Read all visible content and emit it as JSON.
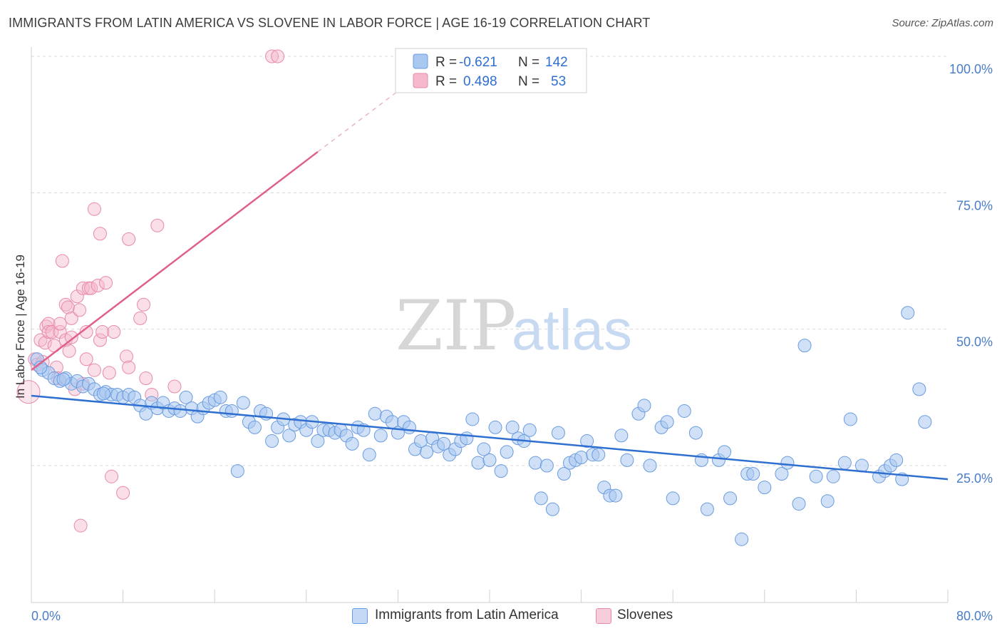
{
  "header": {
    "title": "IMMIGRANTS FROM LATIN AMERICA VS SLOVENE IN LABOR FORCE | AGE 16-19 CORRELATION CHART",
    "source": "Source: ZipAtlas.com"
  },
  "watermark": {
    "zip": "ZIP",
    "atlas": "atlas"
  },
  "legend": {
    "rows": [
      {
        "r_label": "R =",
        "r_value": "-0.621",
        "n_label": "N =",
        "n_value": "142"
      },
      {
        "r_label": "R =",
        "r_value": "0.498",
        "n_label": "N =",
        "n_value": "53"
      }
    ]
  },
  "bottom_legend": {
    "blue": "Immigrants from Latin America",
    "pink": "Slovenes"
  },
  "colors": {
    "blue_fill": "#a9c8f0",
    "blue_stroke": "#6a9be0",
    "blue_line": "#2e6fd0",
    "pink_fill": "#f5b8cc",
    "pink_stroke": "#e88aa8",
    "pink_line": "#e0608a",
    "grid": "#d8d8d8",
    "tick_label": "#4a7cc8"
  },
  "chart_data": {
    "type": "scatter",
    "title": "IMMIGRANTS FROM LATIN AMERICA VS SLOVENE IN LABOR FORCE | AGE 16-19 CORRELATION CHART",
    "xlabel": "",
    "ylabel": "In Labor Force | Age 16-19",
    "xlim": [
      0,
      80
    ],
    "ylim": [
      0,
      105
    ],
    "x_tick_labels": [
      "0.0%",
      "80.0%"
    ],
    "y_ticks": [
      25,
      50,
      75,
      100
    ],
    "y_tick_labels": [
      "25.0%",
      "50.0%",
      "75.0%",
      "100.0%"
    ],
    "grid": true,
    "legend_position": "top-center",
    "series": [
      {
        "name": "Immigrants from Latin America",
        "R": -0.621,
        "N": 142,
        "trend": {
          "x": [
            0,
            80
          ],
          "y": [
            37.8,
            22.5
          ]
        },
        "points": [
          [
            0.5,
            44.5
          ],
          [
            1.0,
            42.5
          ],
          [
            1.5,
            42.0
          ],
          [
            2.0,
            41.0
          ],
          [
            2.5,
            40.5
          ],
          [
            3.0,
            41.0
          ],
          [
            3.5,
            40.0
          ],
          [
            4.0,
            40.5
          ],
          [
            4.5,
            39.5
          ],
          [
            5.0,
            40.0
          ],
          [
            5.5,
            39.0
          ],
          [
            6.0,
            38.0
          ],
          [
            6.5,
            38.5
          ],
          [
            7.0,
            38.0
          ],
          [
            7.5,
            38.0
          ],
          [
            8.0,
            37.5
          ],
          [
            8.5,
            38.0
          ],
          [
            9.0,
            37.5
          ],
          [
            9.5,
            36.0
          ],
          [
            10.0,
            34.5
          ],
          [
            10.5,
            36.5
          ],
          [
            11.0,
            35.5
          ],
          [
            11.5,
            36.5
          ],
          [
            12.0,
            35.0
          ],
          [
            12.5,
            35.5
          ],
          [
            13.0,
            35.0
          ],
          [
            13.5,
            37.5
          ],
          [
            14.0,
            35.5
          ],
          [
            14.5,
            34.0
          ],
          [
            15.0,
            35.5
          ],
          [
            15.5,
            36.5
          ],
          [
            16.0,
            37.0
          ],
          [
            16.5,
            37.5
          ],
          [
            17.0,
            35.0
          ],
          [
            17.5,
            35.0
          ],
          [
            18.0,
            24.0
          ],
          [
            18.5,
            36.5
          ],
          [
            19.0,
            33.0
          ],
          [
            19.5,
            32.0
          ],
          [
            20.0,
            35.0
          ],
          [
            20.5,
            34.5
          ],
          [
            21.0,
            29.5
          ],
          [
            21.5,
            32.0
          ],
          [
            22.0,
            33.5
          ],
          [
            22.5,
            30.5
          ],
          [
            23.0,
            32.5
          ],
          [
            23.5,
            33.0
          ],
          [
            24.0,
            31.5
          ],
          [
            24.5,
            33.0
          ],
          [
            25.0,
            29.5
          ],
          [
            25.5,
            31.5
          ],
          [
            26.0,
            31.5
          ],
          [
            26.5,
            31.0
          ],
          [
            27.0,
            31.5
          ],
          [
            27.5,
            30.5
          ],
          [
            28.0,
            29.0
          ],
          [
            28.5,
            32.0
          ],
          [
            29.0,
            31.5
          ],
          [
            29.5,
            27.0
          ],
          [
            30.0,
            34.5
          ],
          [
            30.5,
            30.5
          ],
          [
            31.0,
            34.0
          ],
          [
            31.5,
            33.0
          ],
          [
            32.0,
            31.0
          ],
          [
            32.5,
            33.0
          ],
          [
            33.0,
            32.0
          ],
          [
            33.5,
            28.0
          ],
          [
            34.0,
            29.5
          ],
          [
            34.5,
            27.5
          ],
          [
            35.0,
            30.0
          ],
          [
            35.5,
            28.5
          ],
          [
            36.0,
            29.0
          ],
          [
            36.5,
            27.0
          ],
          [
            37.0,
            28.0
          ],
          [
            37.5,
            29.5
          ],
          [
            38.0,
            30.0
          ],
          [
            38.5,
            33.5
          ],
          [
            39.0,
            25.5
          ],
          [
            39.5,
            28.0
          ],
          [
            40.0,
            26.0
          ],
          [
            40.5,
            32.0
          ],
          [
            41.0,
            24.0
          ],
          [
            41.5,
            27.5
          ],
          [
            42.0,
            32.0
          ],
          [
            42.5,
            30.0
          ],
          [
            43.0,
            29.5
          ],
          [
            43.5,
            31.5
          ],
          [
            44.0,
            25.5
          ],
          [
            44.5,
            19.0
          ],
          [
            45.0,
            25.0
          ],
          [
            45.5,
            17.0
          ],
          [
            46.0,
            31.0
          ],
          [
            46.5,
            23.5
          ],
          [
            47.0,
            25.5
          ],
          [
            47.5,
            26.0
          ],
          [
            48.0,
            26.5
          ],
          [
            48.5,
            29.5
          ],
          [
            49.0,
            27.0
          ],
          [
            49.5,
            27.0
          ],
          [
            50.0,
            21.0
          ],
          [
            50.5,
            19.5
          ],
          [
            51.0,
            19.5
          ],
          [
            51.5,
            30.5
          ],
          [
            52.0,
            26.0
          ],
          [
            53.0,
            34.5
          ],
          [
            53.5,
            36.0
          ],
          [
            54.0,
            25.0
          ],
          [
            55.0,
            32.0
          ],
          [
            55.5,
            33.0
          ],
          [
            56.0,
            19.0
          ],
          [
            57.0,
            35.0
          ],
          [
            58.0,
            31.0
          ],
          [
            58.5,
            26.0
          ],
          [
            59.0,
            17.0
          ],
          [
            60.0,
            26.0
          ],
          [
            60.5,
            27.5
          ],
          [
            61.0,
            19.0
          ],
          [
            62.0,
            11.5
          ],
          [
            62.5,
            23.5
          ],
          [
            63.0,
            23.5
          ],
          [
            64.0,
            21.0
          ],
          [
            65.5,
            23.5
          ],
          [
            66.0,
            25.5
          ],
          [
            67.0,
            18.0
          ],
          [
            67.5,
            47.0
          ],
          [
            68.5,
            23.0
          ],
          [
            69.5,
            18.5
          ],
          [
            70.0,
            23.0
          ],
          [
            71.0,
            25.5
          ],
          [
            71.5,
            33.5
          ],
          [
            72.5,
            25.0
          ],
          [
            74.0,
            23.0
          ],
          [
            74.5,
            24.0
          ],
          [
            75.0,
            25.0
          ],
          [
            75.5,
            26.0
          ],
          [
            76.0,
            22.5
          ],
          [
            76.5,
            53.0
          ],
          [
            77.5,
            39.0
          ],
          [
            78.0,
            33.0
          ],
          [
            0.8,
            43.0
          ],
          [
            2.8,
            40.8
          ],
          [
            6.3,
            38.2
          ]
        ]
      },
      {
        "name": "Slovenes",
        "R": 0.498,
        "N": 53,
        "trend": {
          "x": [
            0,
            25
          ],
          "y": [
            42.5,
            82.5
          ],
          "dashed_x": [
            25,
            33.5
          ],
          "dashed_y": [
            82.5,
            96
          ]
        },
        "points": [
          [
            0.3,
            44.5
          ],
          [
            0.5,
            43.5
          ],
          [
            0.8,
            48.0
          ],
          [
            1.0,
            44.0
          ],
          [
            1.2,
            47.5
          ],
          [
            1.3,
            50.5
          ],
          [
            1.5,
            51.0
          ],
          [
            1.5,
            49.5
          ],
          [
            1.8,
            49.5
          ],
          [
            2.0,
            47.0
          ],
          [
            2.2,
            43.0
          ],
          [
            2.3,
            41.0
          ],
          [
            2.5,
            49.5
          ],
          [
            2.5,
            51.0
          ],
          [
            2.7,
            62.5
          ],
          [
            3.0,
            48.0
          ],
          [
            3.0,
            54.5
          ],
          [
            3.2,
            54.0
          ],
          [
            3.3,
            46.0
          ],
          [
            3.5,
            48.5
          ],
          [
            3.5,
            52.0
          ],
          [
            3.8,
            39.0
          ],
          [
            4.0,
            56.0
          ],
          [
            4.2,
            53.5
          ],
          [
            4.3,
            14.0
          ],
          [
            4.5,
            40.0
          ],
          [
            4.5,
            57.5
          ],
          [
            4.8,
            49.5
          ],
          [
            4.8,
            44.5
          ],
          [
            5.0,
            57.5
          ],
          [
            5.2,
            57.5
          ],
          [
            5.5,
            42.5
          ],
          [
            5.5,
            72.0
          ],
          [
            5.8,
            58.0
          ],
          [
            6.0,
            48.0
          ],
          [
            6.0,
            67.5
          ],
          [
            6.2,
            49.5
          ],
          [
            6.5,
            58.5
          ],
          [
            6.8,
            42.0
          ],
          [
            7.0,
            23.0
          ],
          [
            7.2,
            49.5
          ],
          [
            8.0,
            20.0
          ],
          [
            8.3,
            45.0
          ],
          [
            8.5,
            43.0
          ],
          [
            8.5,
            66.5
          ],
          [
            9.5,
            52.0
          ],
          [
            9.8,
            54.5
          ],
          [
            10.0,
            41.0
          ],
          [
            10.5,
            38.0
          ],
          [
            11.0,
            69.0
          ],
          [
            12.5,
            39.5
          ],
          [
            21.0,
            100.0
          ],
          [
            21.5,
            100.0
          ]
        ]
      }
    ]
  }
}
